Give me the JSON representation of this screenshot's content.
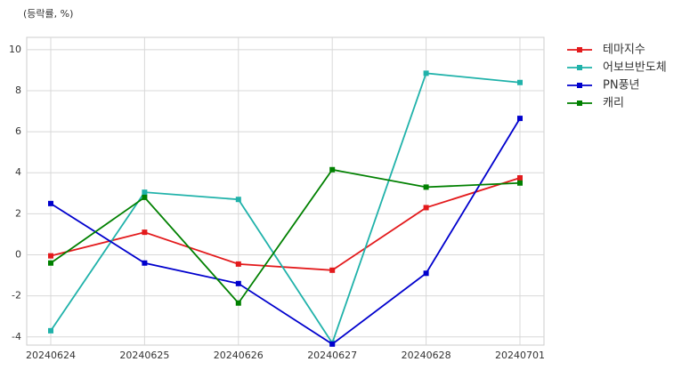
{
  "chart_data": {
    "type": "line",
    "y_label": "(등락률, %)",
    "categories": [
      "20240624",
      "20240625",
      "20240626",
      "20240627",
      "20240628",
      "20240701"
    ],
    "series": [
      {
        "name": "테마지수",
        "color": "#e31a1c",
        "values": [
          -0.05,
          1.1,
          -0.45,
          -0.75,
          2.3,
          3.75
        ]
      },
      {
        "name": "어보브반도체",
        "color": "#20b2aa",
        "values": [
          -3.7,
          3.05,
          2.7,
          -4.3,
          8.85,
          8.4
        ]
      },
      {
        "name": "PN풍년",
        "color": "#0000cd",
        "values": [
          2.5,
          -0.4,
          -1.4,
          -4.35,
          -0.9,
          6.65
        ]
      },
      {
        "name": "캐리",
        "color": "#008000",
        "values": [
          -0.4,
          2.8,
          -2.35,
          4.15,
          3.3,
          3.5
        ]
      }
    ],
    "ylim": [
      -4.4,
      10.6
    ],
    "yticks": [
      -4,
      -2,
      0,
      2,
      4,
      6,
      8,
      10
    ],
    "grid": true,
    "legend": "outside-right"
  }
}
